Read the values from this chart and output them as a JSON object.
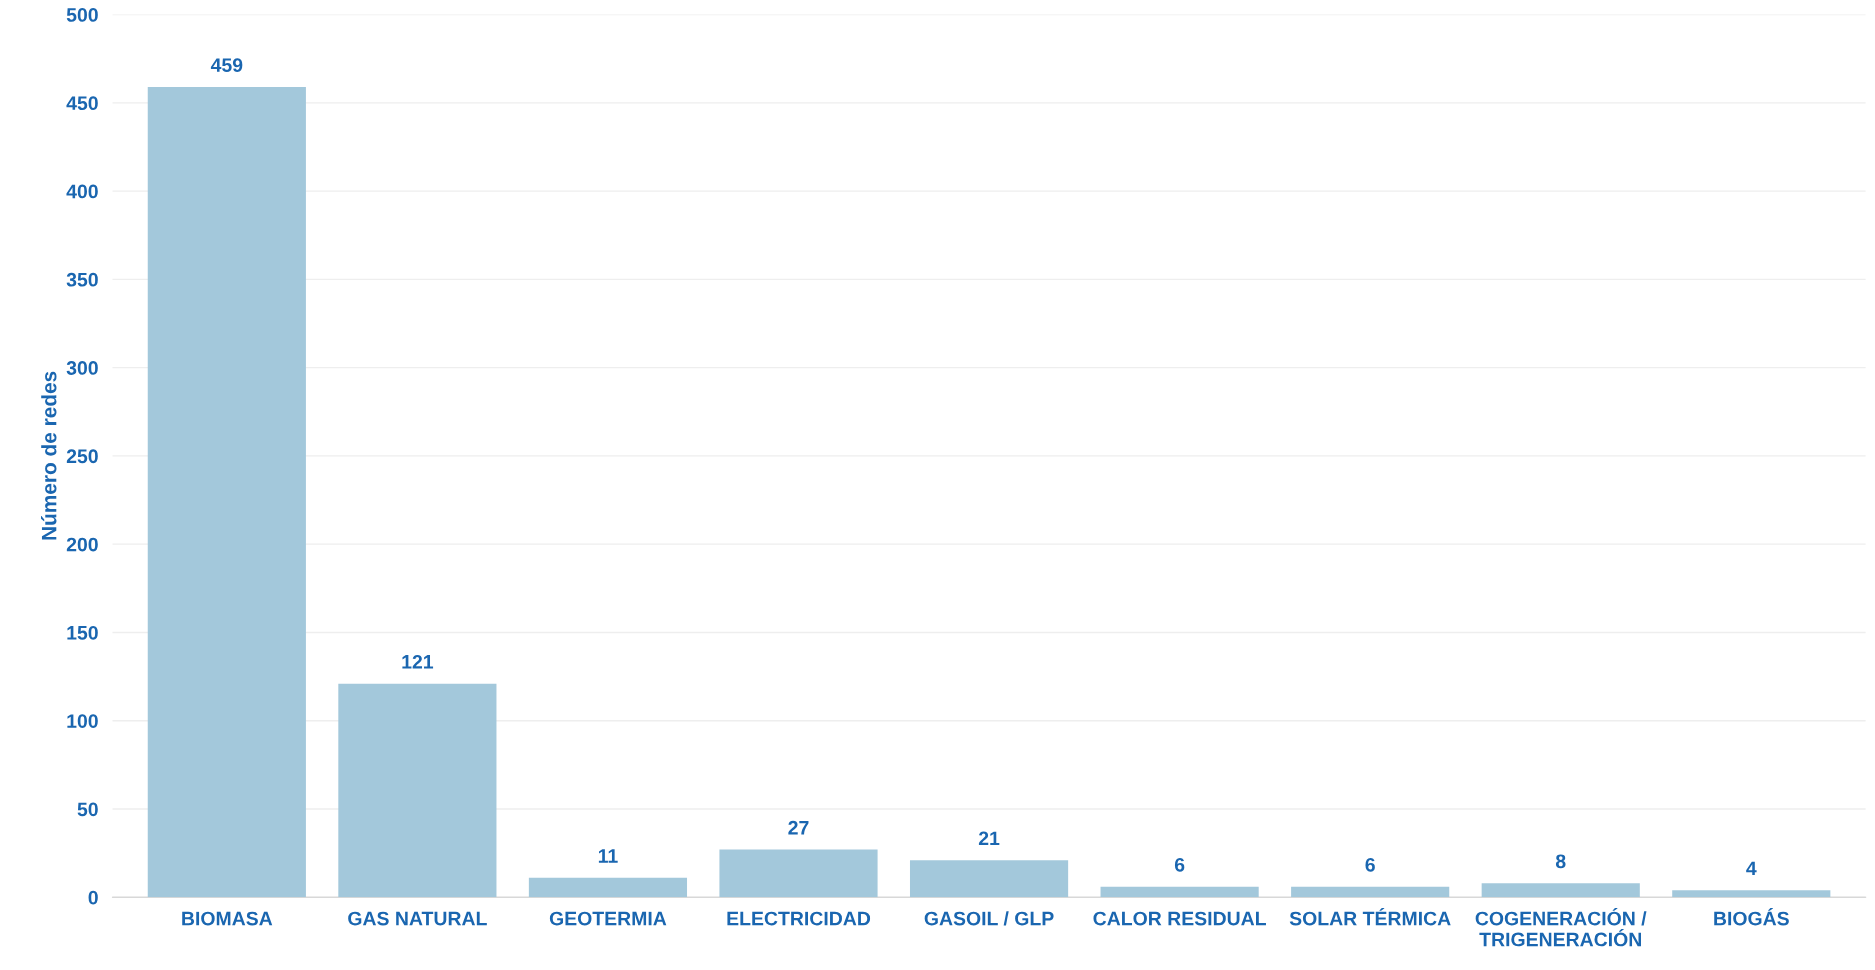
{
  "chart_data": {
    "type": "bar",
    "ylabel": "Número de redes",
    "categories": [
      "BIOMASA",
      "GAS NATURAL",
      "GEOTERMIA",
      "ELECTRICIDAD",
      "GASOIL / GLP",
      "CALOR RESIDUAL",
      "SOLAR TÉRMICA",
      "COGENERACIÓN /\nTRIGENERACIÓN",
      "BIOGÁS"
    ],
    "values": [
      459,
      121,
      11,
      27,
      21,
      6,
      6,
      8,
      4
    ],
    "color": "#a3c8db",
    "ylim": [
      0,
      500
    ],
    "yticks": [
      0,
      50,
      100,
      150,
      200,
      250,
      300,
      350,
      400,
      450,
      500
    ],
    "grid": "y",
    "data_labels": true,
    "legend": false
  }
}
